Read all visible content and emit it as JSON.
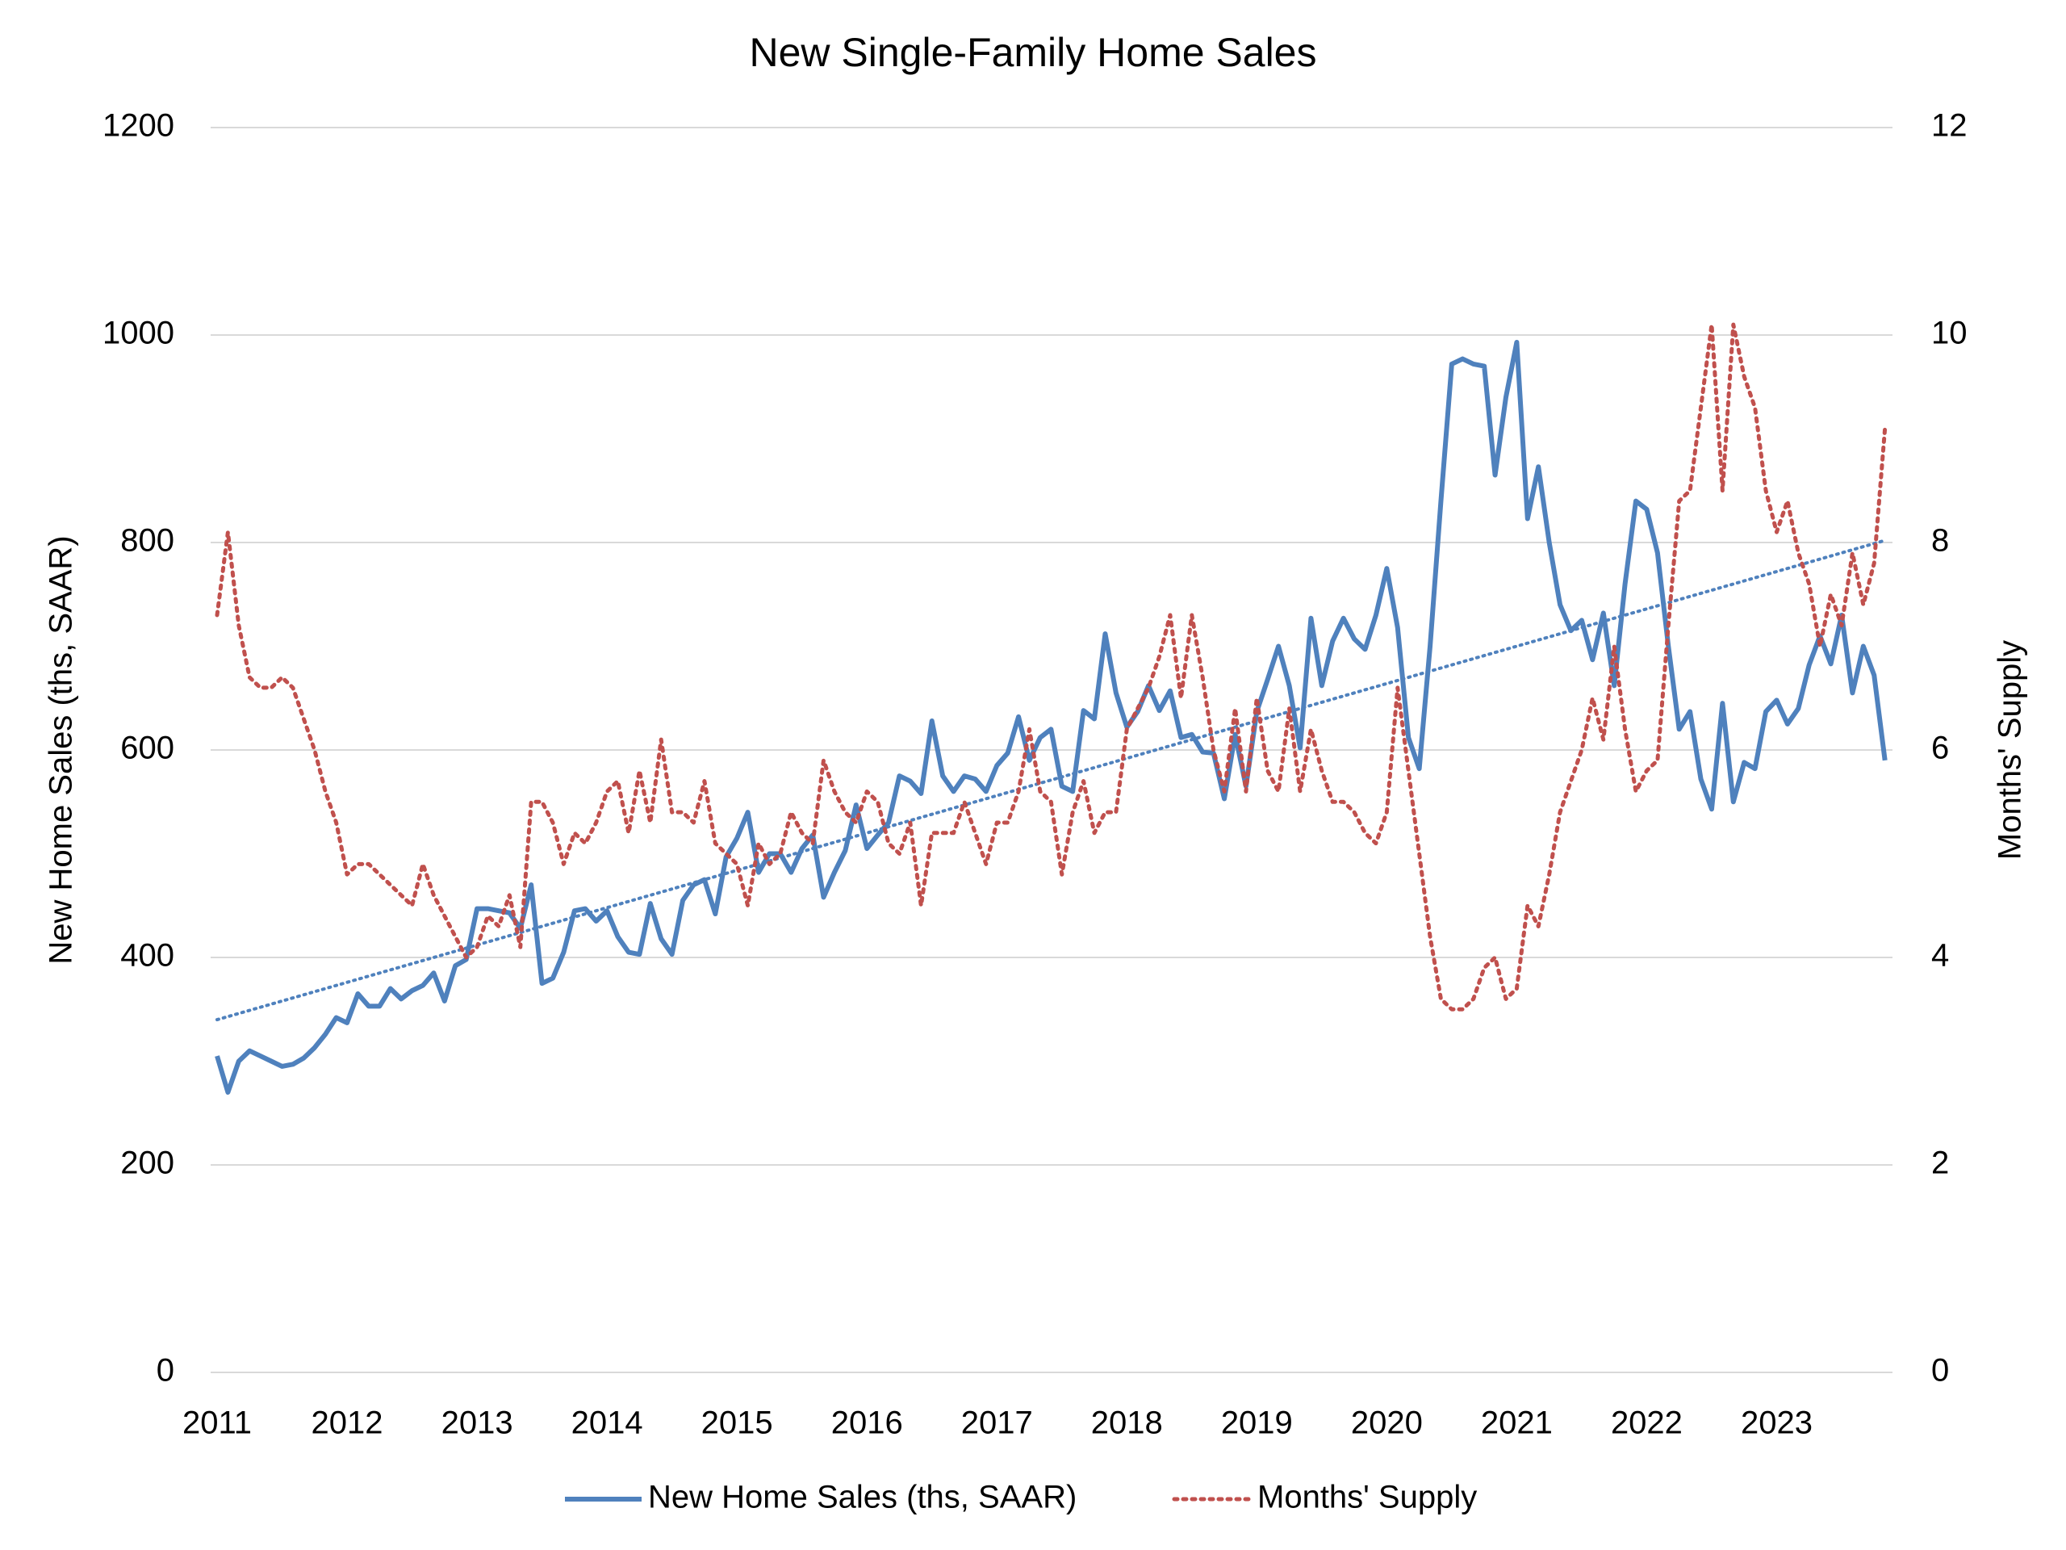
{
  "chart_data": {
    "type": "line",
    "title": "New Single-Family Home Sales",
    "y_label": "New Home Sales (ths, SAAR)",
    "y2_label": "Months' Supply",
    "categories": [
      "2011",
      null,
      null,
      null,
      null,
      null,
      null,
      null,
      null,
      null,
      null,
      null,
      "2012",
      null,
      null,
      null,
      null,
      null,
      null,
      null,
      null,
      null,
      null,
      null,
      "2013",
      null,
      null,
      null,
      null,
      null,
      null,
      null,
      null,
      null,
      null,
      null,
      "2014",
      null,
      null,
      null,
      null,
      null,
      null,
      null,
      null,
      null,
      null,
      null,
      "2015",
      null,
      null,
      null,
      null,
      null,
      null,
      null,
      null,
      null,
      null,
      null,
      "2016",
      null,
      null,
      null,
      null,
      null,
      null,
      null,
      null,
      null,
      null,
      null,
      "2017",
      null,
      null,
      null,
      null,
      null,
      null,
      null,
      null,
      null,
      null,
      null,
      "2018",
      null,
      null,
      null,
      null,
      null,
      null,
      null,
      null,
      null,
      null,
      null,
      "2019",
      null,
      null,
      null,
      null,
      null,
      null,
      null,
      null,
      null,
      null,
      null,
      "2020",
      null,
      null,
      null,
      null,
      null,
      null,
      null,
      null,
      null,
      null,
      null,
      "2021",
      null,
      null,
      null,
      null,
      null,
      null,
      null,
      null,
      null,
      null,
      null,
      "2022",
      null,
      null,
      null,
      null,
      null,
      null,
      null,
      null,
      null,
      null,
      null,
      "2023",
      null,
      null,
      null,
      null,
      null,
      null,
      null,
      null,
      null,
      null
    ],
    "series": [
      {
        "name": "New Home Sales (ths, SAAR)",
        "color": "#4f81bd",
        "dash": "solid",
        "values": [
          305,
          270,
          300,
          310,
          305,
          300,
          295,
          297,
          303,
          313,
          326,
          342,
          337,
          365,
          353,
          353,
          370,
          360,
          368,
          373,
          385,
          358,
          392,
          398,
          447,
          447,
          445,
          443,
          428,
          470,
          375,
          380,
          405,
          445,
          447,
          435,
          445,
          420,
          405,
          403,
          452,
          418,
          403,
          455,
          470,
          475,
          442,
          497,
          515,
          540,
          482,
          500,
          500,
          482,
          505,
          518,
          458,
          482,
          503,
          547,
          505,
          518,
          530,
          575,
          570,
          558,
          628,
          575,
          560,
          575,
          572,
          560,
          585,
          597,
          632,
          590,
          612,
          620,
          565,
          560,
          638,
          630,
          712,
          655,
          622,
          637,
          662,
          638,
          657,
          612,
          615,
          598,
          597,
          553,
          615,
          565,
          637,
          668,
          700,
          662,
          602,
          727,
          662,
          705,
          727,
          707,
          697,
          730,
          775,
          718,
          612,
          582,
          700,
          840,
          972,
          977,
          972,
          970,
          865,
          940,
          993,
          823,
          873,
          800,
          740,
          715,
          725,
          687,
          732,
          662,
          760,
          840,
          832,
          790,
          700,
          620,
          637,
          572,
          543,
          645,
          550,
          588,
          582,
          637,
          648,
          625,
          640,
          682,
          710,
          683,
          730,
          655,
          700,
          672,
          590
        ]
      },
      {
        "name": "Months' Supply",
        "color": "#c0504d",
        "dash": "dotted",
        "axis": "y2",
        "values": [
          7.3,
          8.1,
          7.2,
          6.7,
          6.6,
          6.6,
          6.7,
          6.6,
          6.3,
          6.0,
          5.6,
          5.3,
          4.8,
          4.9,
          4.9,
          4.8,
          4.7,
          4.6,
          4.5,
          4.9,
          4.6,
          4.4,
          4.2,
          4.0,
          4.1,
          4.4,
          4.3,
          4.6,
          4.1,
          5.5,
          5.5,
          5.3,
          4.9,
          5.2,
          5.1,
          5.3,
          5.6,
          5.7,
          5.2,
          5.8,
          5.3,
          6.1,
          5.4,
          5.4,
          5.3,
          5.7,
          5.1,
          5.0,
          4.9,
          4.5,
          5.1,
          4.9,
          5.0,
          5.4,
          5.2,
          5.1,
          5.9,
          5.6,
          5.4,
          5.3,
          5.6,
          5.5,
          5.1,
          5.0,
          5.3,
          4.5,
          5.2,
          5.2,
          5.2,
          5.5,
          5.2,
          4.9,
          5.3,
          5.3,
          5.6,
          6.2,
          5.6,
          5.5,
          4.8,
          5.4,
          5.7,
          5.2,
          5.4,
          5.4,
          6.2,
          6.4,
          6.6,
          6.9,
          7.3,
          6.5,
          7.3,
          6.7,
          6.0,
          5.6,
          6.4,
          5.6,
          6.5,
          5.8,
          5.6,
          6.4,
          5.6,
          6.2,
          5.8,
          5.5,
          5.5,
          5.4,
          5.2,
          5.1,
          5.4,
          6.6,
          5.8,
          5.0,
          4.2,
          3.6,
          3.5,
          3.5,
          3.6,
          3.9,
          4.0,
          3.6,
          3.7,
          4.5,
          4.3,
          4.8,
          5.4,
          5.7,
          6.0,
          6.5,
          6.1,
          7.0,
          6.2,
          5.6,
          5.8,
          5.9,
          7.2,
          8.4,
          8.5,
          9.3,
          10.1,
          8.5,
          10.1,
          9.6,
          9.3,
          8.5,
          8.1,
          8.4,
          7.9,
          7.6,
          7.0,
          7.5,
          7.2,
          7.9,
          7.4,
          7.8,
          9.1
        ]
      }
    ],
    "trendline": {
      "color": "#4f81bd",
      "values": [
        340,
        802
      ]
    },
    "ylim": [
      0,
      1200
    ],
    "yticks": [
      0,
      200,
      400,
      600,
      800,
      1000,
      1200
    ],
    "y2lim": [
      0,
      12
    ],
    "y2ticks": [
      0,
      2,
      4,
      6,
      8,
      10,
      12
    ],
    "grid": true,
    "legend": "bottom"
  }
}
